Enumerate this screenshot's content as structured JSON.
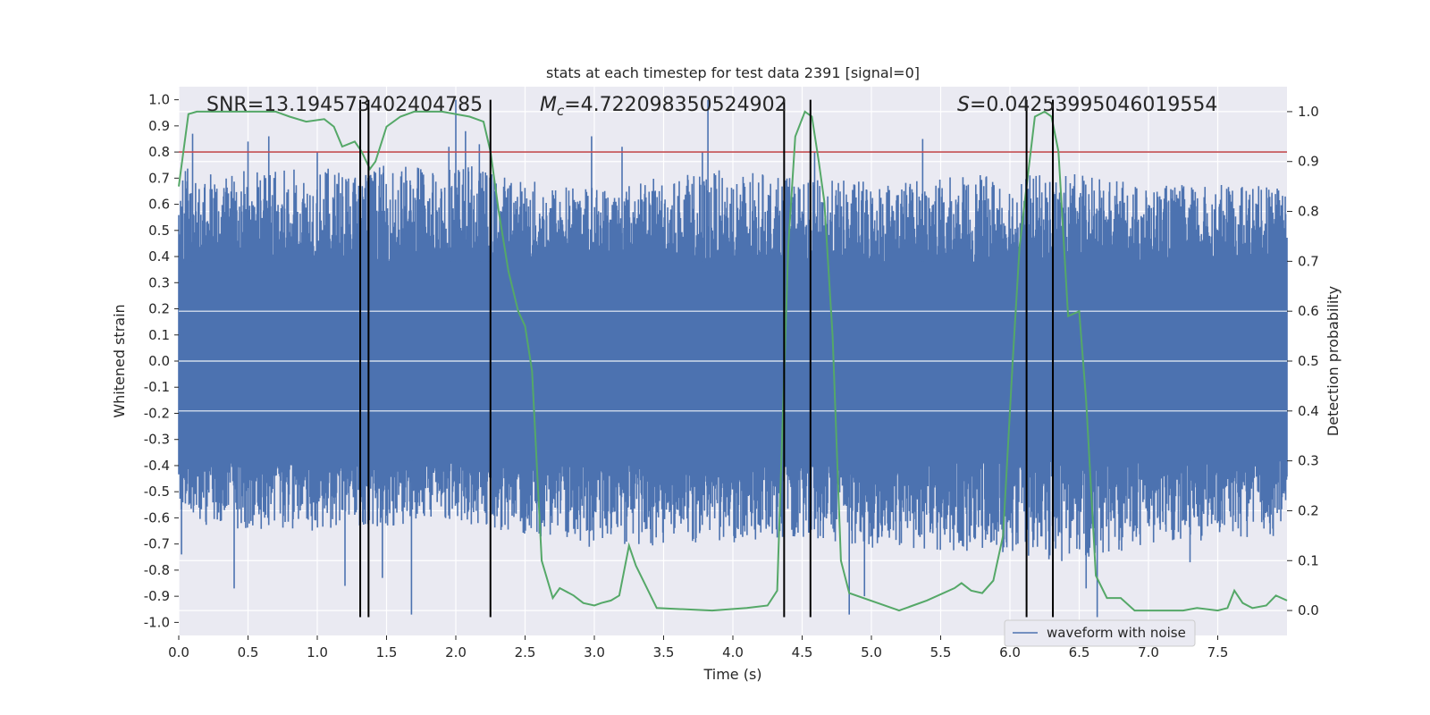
{
  "chart_data": {
    "type": "line",
    "title": "stats at each timestep for test data 2391 [signal=0]",
    "xlabel": "Time (s)",
    "ylabel": "Whitened strain",
    "y2label": "Detection probability",
    "xlim": [
      0,
      8
    ],
    "ylim": [
      -1.05,
      1.05
    ],
    "y2lim": [
      -0.05,
      1.05
    ],
    "x_ticks": [
      0.0,
      0.5,
      1.0,
      1.5,
      2.0,
      2.5,
      3.0,
      3.5,
      4.0,
      4.5,
      5.0,
      5.5,
      6.0,
      6.5,
      7.0,
      7.5
    ],
    "x_tick_labels": [
      "0.0",
      "0.5",
      "1.0",
      "1.5",
      "2.0",
      "2.5",
      "3.0",
      "3.5",
      "4.0",
      "4.5",
      "5.0",
      "5.5",
      "6.0",
      "6.5",
      "7.0",
      "7.5"
    ],
    "y_ticks": [
      1.0,
      0.9,
      0.8,
      0.7,
      0.6,
      0.5,
      0.4,
      0.3,
      0.2,
      0.1,
      0.0,
      -0.1,
      -0.2,
      -0.3,
      -0.4,
      -0.5,
      -0.6,
      -0.7,
      -0.8,
      -0.9,
      -1.0
    ],
    "y_tick_labels": [
      "1.0",
      "0.9",
      "0.8",
      "0.7",
      "0.6",
      "0.5",
      "0.4",
      "0.3",
      "0.2",
      "0.1",
      "0.0",
      "-0.1",
      "-0.2",
      "-0.3",
      "-0.4",
      "-0.5",
      "-0.6",
      "-0.7",
      "-0.8",
      "-0.9",
      "-1.0"
    ],
    "y2_ticks": [
      1.0,
      0.9,
      0.8,
      0.7,
      0.6,
      0.5,
      0.4,
      0.3,
      0.2,
      0.1,
      0.0
    ],
    "y2_tick_labels": [
      "1.0",
      "0.9",
      "0.8",
      "0.7",
      "0.6",
      "0.5",
      "0.4",
      "0.3",
      "0.2",
      "0.1",
      "0.0"
    ],
    "grid": true,
    "threshold": {
      "axis": "y",
      "value": 0.8,
      "color": "#c44e52"
    },
    "annotations": {
      "snr": "SNR=13.194573402404785",
      "mc_symbol": "M",
      "mc_sub": "c",
      "mc_value": "=4.722098350524902",
      "s_symbol": "S",
      "s_value": "=0.04253995046019554"
    },
    "vertical_lines": [
      1.31,
      1.37,
      2.25,
      4.37,
      4.56,
      6.12,
      6.31
    ],
    "vertical_line_range": [
      -0.98,
      1.0
    ],
    "series": [
      {
        "name": "waveform with noise",
        "axis": "left",
        "color": "#4c72b0",
        "kind": "noise-band",
        "core_band": [
          -0.38,
          0.38
        ],
        "envelope": {
          "x": [
            0.0,
            1.0,
            2.0,
            2.5,
            3.0,
            4.0,
            4.5,
            5.0,
            6.0,
            6.5,
            7.0,
            8.0
          ],
          "upper": [
            0.72,
            0.72,
            0.75,
            0.68,
            0.66,
            0.72,
            0.68,
            0.68,
            0.7,
            0.7,
            0.66,
            0.66
          ],
          "lower": [
            -0.62,
            -0.64,
            -0.6,
            -0.66,
            -0.7,
            -0.68,
            -0.66,
            -0.7,
            -0.72,
            -0.76,
            -0.68,
            -0.66
          ]
        },
        "peaks": [
          {
            "x": 0.1,
            "y": 0.87
          },
          {
            "x": 0.5,
            "y": 0.84
          },
          {
            "x": 0.65,
            "y": 0.86
          },
          {
            "x": 1.0,
            "y": 0.8
          },
          {
            "x": 1.95,
            "y": 0.82
          },
          {
            "x": 2.0,
            "y": 1.0
          },
          {
            "x": 2.07,
            "y": 0.88
          },
          {
            "x": 2.17,
            "y": 0.83
          },
          {
            "x": 2.98,
            "y": 0.86
          },
          {
            "x": 3.2,
            "y": 0.82
          },
          {
            "x": 3.78,
            "y": 0.8
          },
          {
            "x": 3.82,
            "y": 1.0
          },
          {
            "x": 4.59,
            "y": 0.8
          },
          {
            "x": 5.37,
            "y": 0.85
          },
          {
            "x": 6.31,
            "y": 1.0
          },
          {
            "x": 0.4,
            "y": -0.87
          },
          {
            "x": 1.2,
            "y": -0.86
          },
          {
            "x": 1.68,
            "y": -0.97
          },
          {
            "x": 1.47,
            "y": -0.83
          },
          {
            "x": 4.84,
            "y": -0.97
          },
          {
            "x": 4.95,
            "y": -0.9
          },
          {
            "x": 6.55,
            "y": -0.87
          },
          {
            "x": 6.63,
            "y": -0.98
          },
          {
            "x": 6.12,
            "y": -0.92
          },
          {
            "x": 7.3,
            "y": -0.77
          },
          {
            "x": 0.02,
            "y": -0.74
          }
        ]
      },
      {
        "name": "",
        "axis": "right",
        "color": "#55a868",
        "x": [
          0.0,
          0.07,
          0.13,
          0.2,
          0.3,
          0.5,
          0.7,
          0.8,
          0.92,
          1.05,
          1.12,
          1.18,
          1.27,
          1.32,
          1.38,
          1.42,
          1.5,
          1.6,
          1.7,
          1.8,
          1.9,
          2.1,
          2.2,
          2.25,
          2.31,
          2.38,
          2.45,
          2.5,
          2.55,
          2.62,
          2.7,
          2.75,
          2.85,
          2.92,
          3.0,
          3.05,
          3.12,
          3.18,
          3.25,
          3.3,
          3.45,
          3.85,
          4.1,
          4.25,
          4.32,
          4.4,
          4.45,
          4.52,
          4.57,
          4.62,
          4.66,
          4.72,
          4.78,
          4.84,
          5.2,
          5.25,
          5.3,
          5.4,
          5.6,
          5.65,
          5.72,
          5.8,
          5.88,
          5.95,
          6.02,
          6.07,
          6.12,
          6.18,
          6.25,
          6.3,
          6.35,
          6.42,
          6.5,
          6.55,
          6.62,
          6.7,
          6.8,
          6.9,
          7.0,
          7.25,
          7.35,
          7.5,
          7.57,
          7.62,
          7.68,
          7.75,
          7.85,
          7.92,
          8.0
        ],
        "y": [
          0.85,
          0.995,
          1.0,
          1.0,
          1.0,
          1.0,
          1.0,
          0.99,
          0.98,
          0.985,
          0.97,
          0.93,
          0.94,
          0.92,
          0.885,
          0.9,
          0.97,
          0.99,
          1.0,
          1.0,
          1.0,
          0.99,
          0.98,
          0.92,
          0.8,
          0.68,
          0.6,
          0.57,
          0.48,
          0.1,
          0.025,
          0.045,
          0.03,
          0.015,
          0.01,
          0.015,
          0.02,
          0.03,
          0.13,
          0.09,
          0.005,
          0.0,
          0.005,
          0.01,
          0.04,
          0.73,
          0.95,
          1.0,
          0.99,
          0.9,
          0.82,
          0.55,
          0.1,
          0.035,
          0.0,
          0.005,
          0.01,
          0.02,
          0.045,
          0.055,
          0.04,
          0.035,
          0.06,
          0.15,
          0.5,
          0.73,
          0.85,
          0.99,
          1.0,
          0.99,
          0.92,
          0.59,
          0.6,
          0.42,
          0.07,
          0.025,
          0.025,
          0.0,
          0.0,
          0.0,
          0.005,
          0.0,
          0.005,
          0.04,
          0.015,
          0.005,
          0.01,
          0.03,
          0.02
        ]
      }
    ],
    "legend": {
      "placement": "lower-center-right",
      "entries": [
        "waveform with noise"
      ]
    }
  }
}
